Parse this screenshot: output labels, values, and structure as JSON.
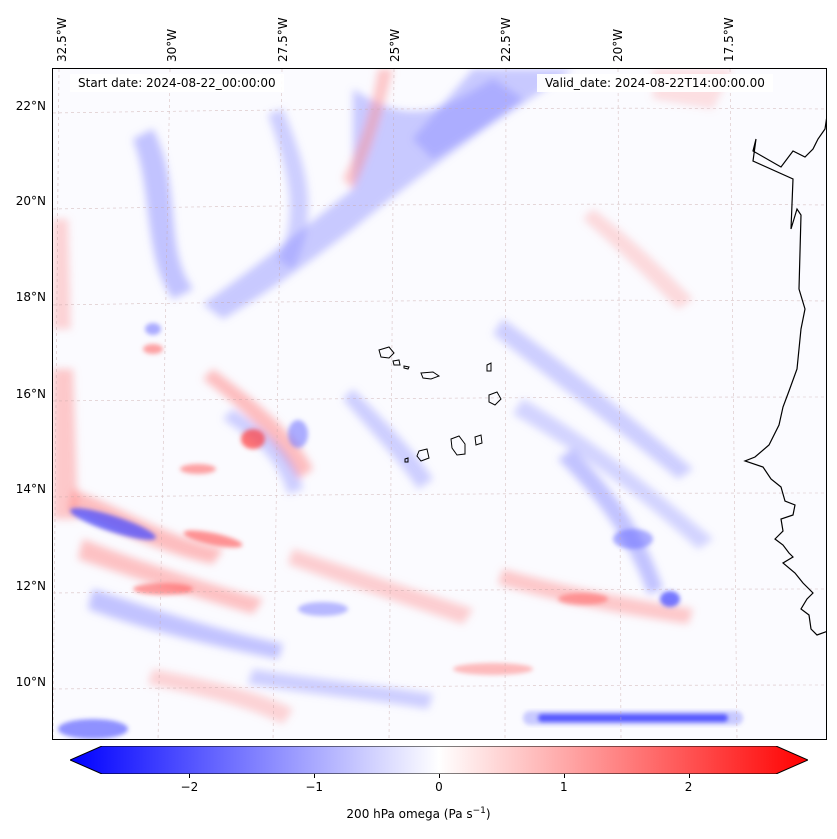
{
  "map": {
    "start_label": "Start date: 2024-08-22_00:00:00",
    "valid_label": "Valid_date: 2024-08-22T14:00:00.00",
    "longitude_labels": [
      "32.5°W",
      "30°W",
      "27.5°W",
      "25°W",
      "22.5°W",
      "20°W",
      "17.5°W"
    ],
    "latitude_labels": [
      "22°N",
      "20°N",
      "18°N",
      "16°N",
      "14°N",
      "12°N",
      "10°N"
    ],
    "field_colors": {
      "negative": "#0000ff",
      "zero": "#ffffff",
      "positive": "#ff0000",
      "coastline": "#000000"
    }
  },
  "colorbar": {
    "min": -2.7,
    "max": 2.7,
    "tick_labels": [
      "−2",
      "−1",
      "0",
      "1",
      "2"
    ],
    "tick_values": [
      -2,
      -1,
      0,
      1,
      2
    ],
    "label_prefix": "200 hPa omega (Pa s",
    "label_exponent": "−1",
    "label_suffix": ")"
  }
}
